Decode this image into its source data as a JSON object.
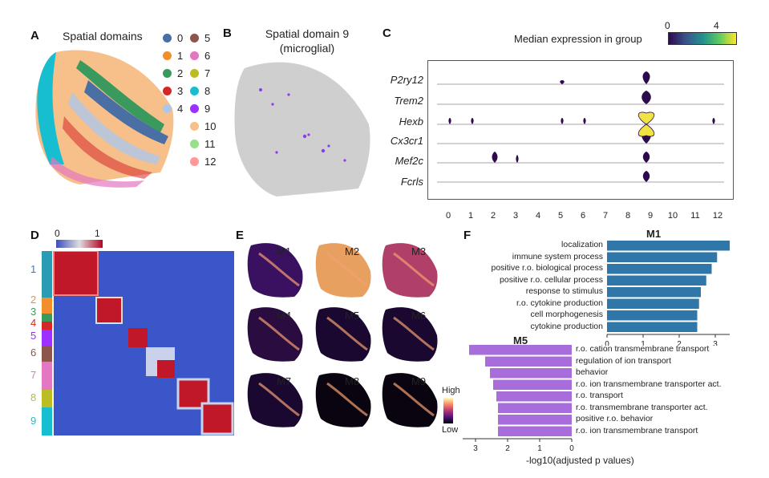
{
  "panels": {
    "A": {
      "label": "A",
      "title": "Spatial domains",
      "legend": [
        {
          "name": "0",
          "color": "#4a6fa5"
        },
        {
          "name": "1",
          "color": "#f28e2b"
        },
        {
          "name": "2",
          "color": "#3a9a5e"
        },
        {
          "name": "3",
          "color": "#d62728"
        },
        {
          "name": "4",
          "color": "#aec7e8"
        },
        {
          "name": "5",
          "color": "#8c564b"
        },
        {
          "name": "6",
          "color": "#e377c2"
        },
        {
          "name": "7",
          "color": "#bcbd22"
        },
        {
          "name": "8",
          "color": "#17becf"
        },
        {
          "name": "9",
          "color": "#9b30ff"
        },
        {
          "name": "10",
          "color": "#f7c08a"
        },
        {
          "name": "11",
          "color": "#98df8a"
        },
        {
          "name": "12",
          "color": "#ff9896"
        }
      ]
    },
    "B": {
      "label": "B",
      "title_line1": "Spatial domain 9",
      "title_line2": "(microglial)"
    },
    "C": {
      "label": "C",
      "colorbar_title": "Median expression in group",
      "colorbar_min": "0",
      "colorbar_max": "4",
      "genes": [
        "P2ry12",
        "Trem2",
        "Hexb",
        "Cx3cr1",
        "Mef2c",
        "Fcrls"
      ],
      "groups": [
        "0",
        "1",
        "2",
        "3",
        "4",
        "5",
        "6",
        "7",
        "8",
        "9",
        "10",
        "11",
        "12"
      ]
    },
    "D": {
      "label": "D",
      "colorbar_min": "0",
      "colorbar_max": "1",
      "row_groups": [
        {
          "name": "1",
          "color": "#2a9bb5"
        },
        {
          "name": "2",
          "color": "#f28e2b"
        },
        {
          "name": "3",
          "color": "#3a9a5e"
        },
        {
          "name": "4",
          "color": "#d62728"
        },
        {
          "name": "5",
          "color": "#9b30ff"
        },
        {
          "name": "6",
          "color": "#8c564b"
        },
        {
          "name": "7",
          "color": "#e377c2"
        },
        {
          "name": "8",
          "color": "#bcbd22"
        },
        {
          "name": "9",
          "color": "#17becf"
        }
      ]
    },
    "E": {
      "label": "E",
      "modules": [
        "M1",
        "M2",
        "M3",
        "M4",
        "M5",
        "M6",
        "M7",
        "M8",
        "M9"
      ],
      "colorbar_high": "High",
      "colorbar_low": "Low"
    },
    "F": {
      "label": "F",
      "M1": {
        "title": "M1",
        "color": "#2f77a8",
        "terms": [
          "localization",
          "immune system process",
          "positive r.o. biological process",
          "positive r.o. cellular process",
          "response to stimulus",
          "r.o. cytokine production",
          "cell morphogenesis",
          "cytokine production"
        ],
        "values": [
          3.45,
          3.05,
          2.9,
          2.75,
          2.6,
          2.55,
          2.5,
          2.5
        ],
        "ticks": [
          "0",
          "1",
          "2",
          "3"
        ]
      },
      "M5": {
        "title": "M5",
        "color": "#a86ddb",
        "terms": [
          "r.o. cation transmembrane transport",
          "regulation of ion transport",
          "behavior",
          "r.o. ion transmembrane transporter act.",
          "r.o. transport",
          "r.o. transmembrane transporter act.",
          "positive r.o. behavior",
          "r.o. ion transmembrane transport"
        ],
        "values": [
          3.2,
          2.7,
          2.55,
          2.45,
          2.35,
          2.3,
          2.3,
          2.3
        ],
        "ticks": [
          "3",
          "2",
          "1",
          "0"
        ]
      },
      "xlabel": "-log10(adjusted p values)"
    }
  }
}
